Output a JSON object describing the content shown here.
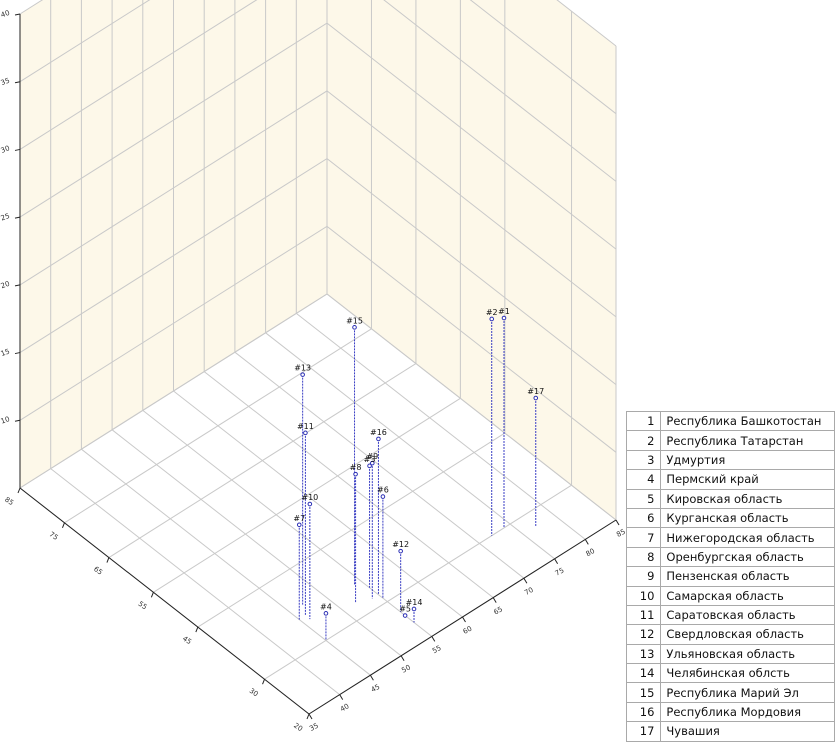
{
  "chart_data": {
    "type": "scatter3d",
    "x_ticks": [
      20,
      30,
      45,
      55,
      65,
      75,
      85
    ],
    "y_ticks": [
      35,
      40,
      45,
      50,
      55,
      60,
      65,
      70,
      75,
      80,
      85
    ],
    "z_ticks": [
      10,
      15,
      20,
      25,
      30,
      35,
      40
    ],
    "x_tick_labels": [
      "20",
      "30",
      "45",
      "55",
      "65",
      "75",
      "85"
    ],
    "y_tick_labels": [
      "35",
      "40",
      "45",
      "50",
      "55",
      "60",
      "65",
      "70",
      "75",
      "80",
      "85"
    ],
    "z_tick_labels": [
      "10",
      "15",
      "20",
      "25",
      "30",
      "35",
      "40"
    ],
    "points": [
      {
        "label": "#1",
        "x": 30,
        "y": 74,
        "z": 20.5
      },
      {
        "label": "#2",
        "x": 30,
        "y": 72,
        "z": 21
      },
      {
        "label": "#3",
        "x": 34,
        "y": 55,
        "z": 14
      },
      {
        "label": "#4",
        "x": 30,
        "y": 45,
        "z": 7
      },
      {
        "label": "#5",
        "x": 26,
        "y": 55,
        "z": 5
      },
      {
        "label": "#6",
        "x": 31,
        "y": 55,
        "z": 12.5
      },
      {
        "label": "#7",
        "x": 36,
        "y": 45,
        "z": 12
      },
      {
        "label": "#8",
        "x": 33,
        "y": 52,
        "z": 14.5
      },
      {
        "label": "#9",
        "x": 32,
        "y": 54,
        "z": 15
      },
      {
        "label": "#10",
        "x": 35,
        "y": 46,
        "z": 13.5
      },
      {
        "label": "#11",
        "x": 36,
        "y": 46,
        "z": 18.5
      },
      {
        "label": "#12",
        "x": 27,
        "y": 55,
        "z": 9.5
      },
      {
        "label": "#13",
        "x": 38,
        "y": 47,
        "z": 22
      },
      {
        "label": "#14",
        "x": 24,
        "y": 55,
        "z": 6
      },
      {
        "label": "#15",
        "x": 36,
        "y": 54,
        "z": 24
      },
      {
        "label": "#16",
        "x": 32,
        "y": 55,
        "z": 16.5
      },
      {
        "label": "#17",
        "x": 27,
        "y": 77,
        "z": 14.5
      }
    ]
  },
  "legend": [
    {
      "num": "1",
      "name": "Республика Башкотостан"
    },
    {
      "num": "2",
      "name": "Республика Татарстан"
    },
    {
      "num": "3",
      "name": "Удмуртия"
    },
    {
      "num": "4",
      "name": "Пермский край"
    },
    {
      "num": "5",
      "name": "Кировская область"
    },
    {
      "num": "6",
      "name": "Курганская область"
    },
    {
      "num": "7",
      "name": "Нижегородская область"
    },
    {
      "num": "8",
      "name": "Оренбургская область"
    },
    {
      "num": "9",
      "name": "Пензенская область"
    },
    {
      "num": "10",
      "name": "Самарская область"
    },
    {
      "num": "11",
      "name": "Саратовская область"
    },
    {
      "num": "12",
      "name": "Свердловская область"
    },
    {
      "num": "13",
      "name": "Ульяновская область"
    },
    {
      "num": "14",
      "name": "Челябинская облсть"
    },
    {
      "num": "15",
      "name": "Республика Марий Эл"
    },
    {
      "num": "16",
      "name": "Республика Мордовия"
    },
    {
      "num": "17",
      "name": "Чувашия"
    }
  ],
  "colors": {
    "wall": "#fdf8e9",
    "grid": "#c9c9c9",
    "point": "#2b2fb5",
    "stem": "#3a3ec4",
    "label": "#111111"
  }
}
